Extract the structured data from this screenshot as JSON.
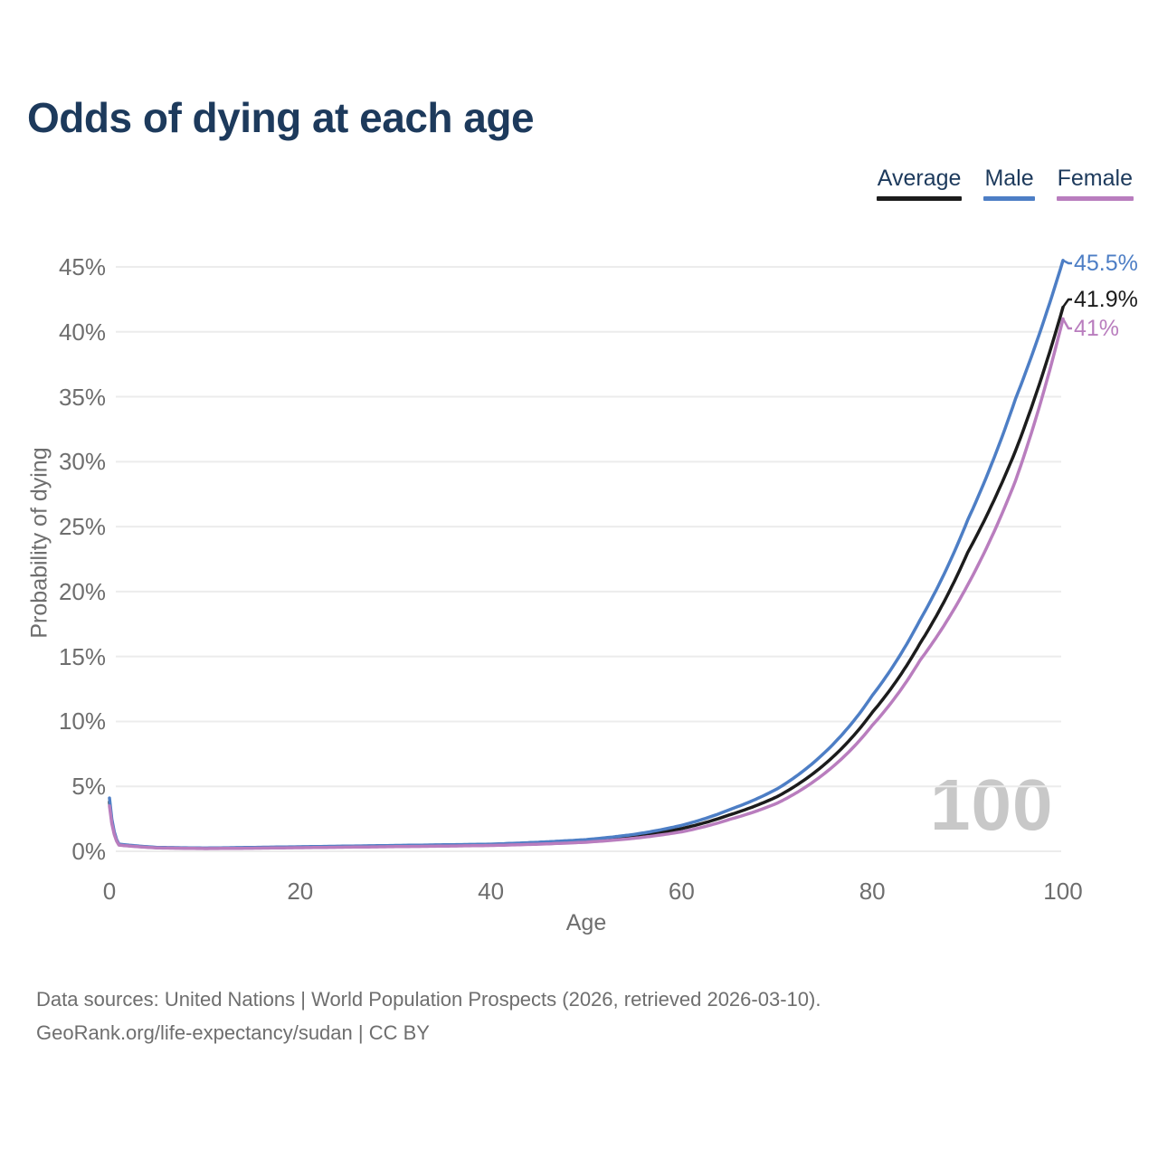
{
  "page": {
    "title": "Odds of dying at each age",
    "watermark": "100",
    "footer_line1": "Data sources: United Nations | World Population Prospects (2026, retrieved 2026-03-10).",
    "footer_line2": "GeoRank.org/life-expectancy/sudan | CC BY"
  },
  "colors": {
    "navy": "#1d3a5c",
    "axisgray": "#6e6e6e",
    "grid": "#ececec",
    "watermark": "#c8c8c8"
  },
  "chart_data": {
    "type": "line",
    "title": "Odds of dying at each age",
    "xlabel": "Age",
    "ylabel": "Probability of dying",
    "xlim": [
      0,
      100
    ],
    "ylim": [
      0,
      45.5
    ],
    "xticks": [
      0,
      20,
      40,
      60,
      80,
      100
    ],
    "yticks": [
      0,
      5,
      10,
      15,
      20,
      25,
      30,
      35,
      40,
      45
    ],
    "ytick_suffix": "%",
    "grid": "horizontal",
    "legend_position": "top-right",
    "x": [
      0,
      1,
      5,
      10,
      15,
      20,
      25,
      30,
      35,
      40,
      45,
      50,
      55,
      60,
      65,
      70,
      75,
      80,
      85,
      90,
      95,
      100
    ],
    "series": [
      {
        "name": "Average",
        "color": "#1c1c1c",
        "end_label": "41.9%",
        "values": [
          3.8,
          0.5,
          0.28,
          0.23,
          0.27,
          0.32,
          0.36,
          0.4,
          0.45,
          0.5,
          0.62,
          0.8,
          1.15,
          1.75,
          2.8,
          4.2,
          6.7,
          10.7,
          16.0,
          23.0,
          30.8,
          41.9
        ]
      },
      {
        "name": "Male",
        "color": "#4d7ec5",
        "end_label": "45.5%",
        "values": [
          4.1,
          0.55,
          0.3,
          0.25,
          0.3,
          0.35,
          0.4,
          0.45,
          0.5,
          0.55,
          0.7,
          0.9,
          1.3,
          2.0,
          3.2,
          4.8,
          7.6,
          12.0,
          17.8,
          25.5,
          34.8,
          45.5
        ]
      },
      {
        "name": "Female",
        "color": "#b97dbe",
        "end_label": "41%",
        "values": [
          3.5,
          0.48,
          0.26,
          0.21,
          0.24,
          0.28,
          0.32,
          0.36,
          0.4,
          0.45,
          0.55,
          0.7,
          1.0,
          1.5,
          2.45,
          3.7,
          6.0,
          9.7,
          14.7,
          20.5,
          28.5,
          41.0
        ]
      }
    ]
  }
}
